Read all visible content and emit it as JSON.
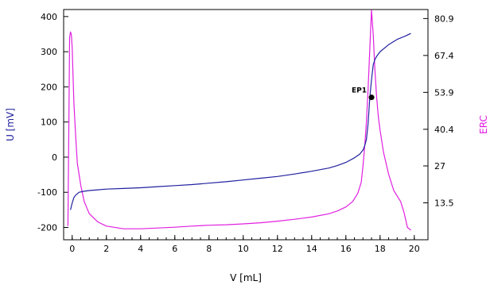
{
  "chart_data": {
    "type": "line",
    "title": "",
    "xlabel": "V [mL]",
    "ylabel_left": "U [mV]",
    "ylabel_right": "ERC",
    "xlim": [
      -0.5,
      20.8
    ],
    "ylim_left": [
      -235,
      420
    ],
    "ylim_right": [
      0,
      84.2
    ],
    "x_ticks": [
      "0",
      "2",
      "4",
      "6",
      "8",
      "10",
      "12",
      "14",
      "16",
      "18",
      "20"
    ],
    "y_ticks_left": [
      "400",
      "300",
      "200",
      "100",
      "0",
      "-100",
      "-200"
    ],
    "y_ticks_right": [
      "80.9",
      "67.4",
      "53.9",
      "40.4",
      "27",
      "13.5"
    ],
    "y_ticks_right_values": [
      80.9,
      67.4,
      53.9,
      40.4,
      27.0,
      13.5
    ],
    "grid": false,
    "series": [
      {
        "name": "U [mV]",
        "axis": "left",
        "color": "#2020a0",
        "x": [
          -0.1,
          0.0,
          0.1,
          0.2,
          0.4,
          0.7,
          1.0,
          1.5,
          2.0,
          3.0,
          4.0,
          5.0,
          6.0,
          7.0,
          8.0,
          9.0,
          10.0,
          11.0,
          12.0,
          13.0,
          14.0,
          15.0,
          15.5,
          16.0,
          16.5,
          16.8,
          17.0,
          17.1,
          17.2,
          17.3,
          17.4,
          17.5,
          17.6,
          17.7,
          17.8,
          18.0,
          18.5,
          19.0,
          19.5,
          19.8
        ],
        "y": [
          -150,
          -130,
          -115,
          -108,
          -100,
          -97,
          -95,
          -93,
          -91,
          -89,
          -87,
          -84,
          -81,
          -78,
          -74,
          -70,
          -65,
          -60,
          -55,
          -48,
          -40,
          -31,
          -24,
          -15,
          -2,
          8,
          20,
          32,
          50,
          95,
          170,
          220,
          263,
          278,
          287,
          300,
          320,
          335,
          345,
          352
        ]
      },
      {
        "name": "ERC",
        "axis": "right",
        "color": "#e020e0",
        "x": [
          -0.25,
          -0.2,
          -0.15,
          -0.1,
          -0.05,
          0.0,
          0.05,
          0.1,
          0.2,
          0.3,
          0.5,
          0.7,
          1.0,
          1.5,
          2.0,
          3.0,
          4.0,
          5.0,
          6.0,
          7.0,
          8.0,
          9.0,
          10.0,
          11.0,
          12.0,
          13.0,
          14.0,
          15.0,
          15.5,
          16.0,
          16.4,
          16.7,
          16.9,
          17.0,
          17.1,
          17.2,
          17.3,
          17.4,
          17.5,
          17.6,
          17.7,
          17.8,
          17.9,
          18.0,
          18.2,
          18.5,
          18.8,
          19.0,
          19.2,
          19.4,
          19.6,
          19.8
        ],
        "y": [
          5,
          40,
          74,
          76,
          75,
          70,
          60,
          50,
          38,
          28,
          20,
          14,
          9.5,
          6.5,
          5.0,
          4.0,
          4.0,
          4.3,
          4.6,
          5.0,
          5.3,
          5.5,
          5.8,
          6.2,
          6.8,
          7.5,
          8.3,
          9.5,
          10.5,
          12.0,
          14.0,
          17.0,
          21.0,
          27.0,
          34.0,
          43.0,
          55.0,
          70.0,
          84.0,
          75.0,
          62.0,
          52.0,
          45.0,
          40.0,
          32.0,
          24.0,
          18.0,
          16.0,
          14.0,
          10.0,
          4.5,
          3.5
        ]
      }
    ],
    "annotations": [
      {
        "label": "EP1",
        "x": 17.5,
        "y": 170,
        "axis": "left",
        "marker": "dot"
      }
    ]
  }
}
